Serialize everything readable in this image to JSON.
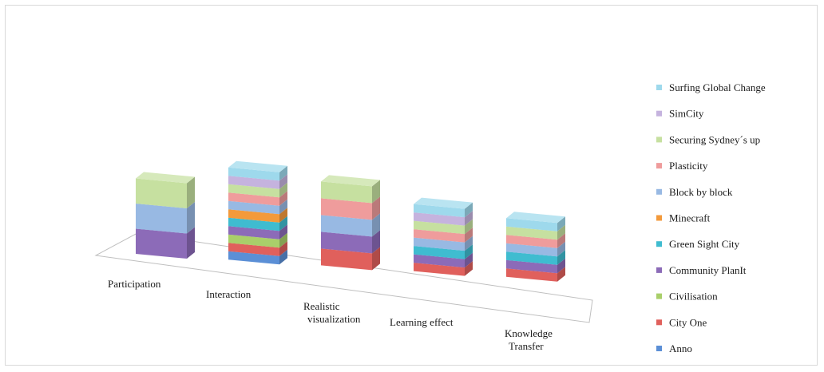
{
  "chart_data": {
    "type": "bar",
    "stacked": true,
    "three_d": true,
    "title": "",
    "xlabel": "",
    "ylabel": "",
    "grid": false,
    "legend_position": "right",
    "categories": [
      [
        "Participation"
      ],
      [
        "Interaction"
      ],
      [
        "Realistic",
        "visualization"
      ],
      [
        "Learning effect"
      ],
      [
        "Knowledge",
        "Transfer"
      ]
    ],
    "series": [
      {
        "name": "Anno",
        "color": "#5b8fd6",
        "values": [
          0,
          1,
          0,
          0,
          0
        ]
      },
      {
        "name": "City One",
        "color": "#e0605c",
        "values": [
          0,
          1,
          2,
          1,
          1
        ]
      },
      {
        "name": "Civilisation",
        "color": "#a9cf6a",
        "values": [
          0,
          1,
          0,
          0,
          0
        ]
      },
      {
        "name": "Community PlanIt",
        "color": "#8c6bb8",
        "values": [
          3,
          1,
          2,
          1,
          1
        ]
      },
      {
        "name": "Green Sight City",
        "color": "#3fbcd0",
        "values": [
          0,
          1,
          0,
          1,
          1
        ]
      },
      {
        "name": "Minecraft",
        "color": "#f39a3b",
        "values": [
          0,
          1,
          0,
          0,
          0
        ]
      },
      {
        "name": "Block by block",
        "color": "#98b9e3",
        "values": [
          3,
          1,
          2,
          1,
          1
        ]
      },
      {
        "name": "Plasticity",
        "color": "#ef9c9c",
        "values": [
          0,
          1,
          2,
          1,
          1
        ]
      },
      {
        "name": "Securing Sydney´s up",
        "color": "#c6e0a0",
        "values": [
          3,
          1,
          2,
          1,
          1
        ]
      },
      {
        "name": "SimCity",
        "color": "#c5b3de",
        "values": [
          0,
          1,
          0,
          1,
          0
        ]
      },
      {
        "name": "Surfing Global Change",
        "color": "#9ed9ec",
        "values": [
          0,
          1,
          0,
          1,
          1
        ]
      }
    ]
  }
}
